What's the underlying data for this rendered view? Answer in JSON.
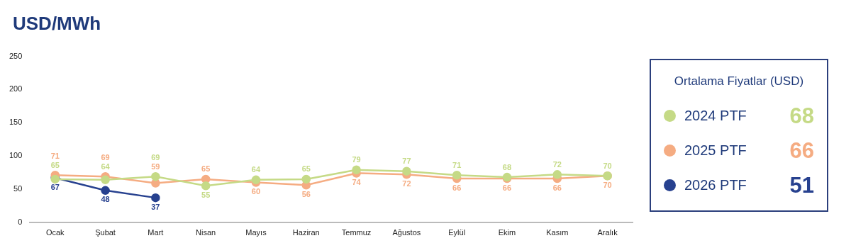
{
  "chart_data": {
    "type": "line",
    "title": "USD/MWh",
    "legend_title": "Ortalama Fiyatlar (USD)",
    "categories": [
      "Ocak",
      "Şubat",
      "Mart",
      "Nisan",
      "Mayıs",
      "Haziran",
      "Temmuz",
      "Ağustos",
      "Eylül",
      "Ekim",
      "Kasım",
      "Aralık"
    ],
    "series": [
      {
        "name": "2024 PTF",
        "color": "#c5da86",
        "values": [
          65,
          64,
          69,
          55,
          64,
          65,
          79,
          77,
          71,
          68,
          72,
          70
        ]
      },
      {
        "name": "2025 PTF",
        "color": "#f5ac82",
        "values": [
          71,
          69,
          59,
          65,
          60,
          56,
          74,
          72,
          66,
          66,
          66,
          70
        ]
      },
      {
        "name": "2026 PTF",
        "color": "#27418f",
        "values": [
          67,
          48,
          37,
          null,
          null,
          null,
          null,
          null,
          null,
          null,
          null,
          null
        ]
      }
    ],
    "annotations": [
      "68",
      "66",
      "51"
    ],
    "ylim": [
      0,
      250
    ],
    "yticks": [
      0,
      50,
      100,
      150,
      200,
      250
    ],
    "grid": false,
    "legend": "right",
    "marker": "circle",
    "line_style": "solid",
    "data_labels": true
  }
}
